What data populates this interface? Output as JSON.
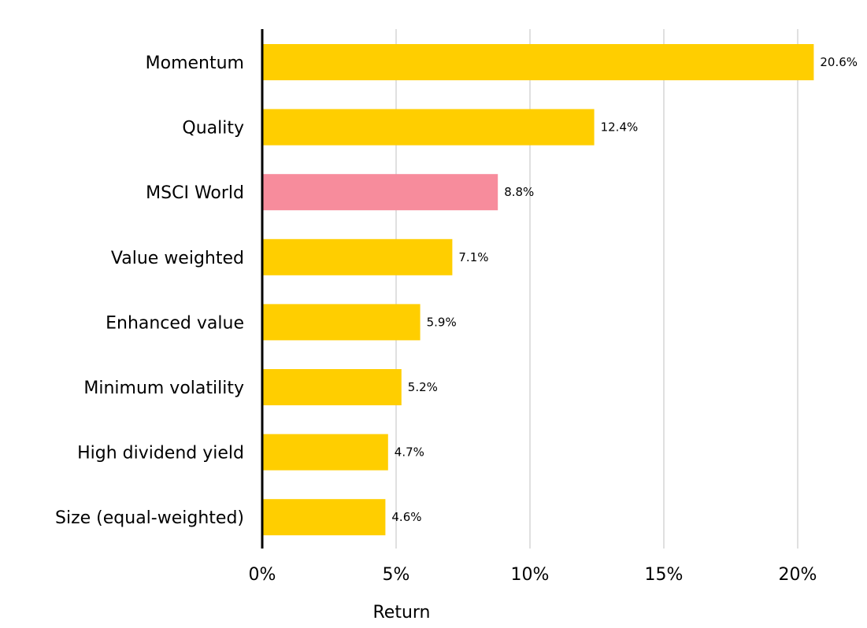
{
  "chart_data": {
    "type": "bar",
    "orientation": "horizontal",
    "categories": [
      "Momentum",
      "Quality",
      "MSCI World",
      "Value weighted",
      "Enhanced value",
      "Minimum volatility",
      "High dividend yield",
      "Size (equal-weighted)"
    ],
    "values": [
      20.6,
      12.4,
      8.8,
      7.1,
      5.9,
      5.2,
      4.7,
      4.6
    ],
    "data_labels": [
      "20.6%",
      "12.4%",
      "8.8%",
      "7.1%",
      "5.9%",
      "5.2%",
      "4.7%",
      "4.6%"
    ],
    "x_ticks": [
      0,
      5,
      10,
      15,
      20
    ],
    "x_tick_labels": [
      "0%",
      "5%",
      "10%",
      "15%",
      "20%"
    ],
    "xlim": [
      0,
      22
    ],
    "title": "",
    "xlabel": "Return",
    "ylabel": "",
    "grid": "vertical",
    "legend": "none",
    "colors": {
      "default_bar": "#FFCE00",
      "highlight_bar": "#F78C9C",
      "highlight_category": "MSCI World",
      "grid": "#d6d6d6",
      "axis": "#000000",
      "text": "#000000"
    }
  }
}
